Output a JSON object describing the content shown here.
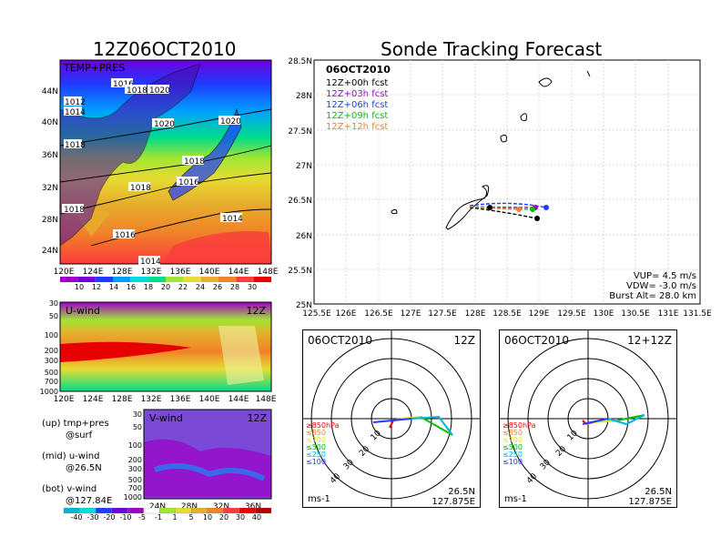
{
  "left_title": "12Z06OCT2010",
  "right_title": "Sonde Tracking Forecast",
  "temp_panel": {
    "label": "TEMP+PRES",
    "lat_ticks": [
      "44N",
      "40N",
      "36N",
      "32N",
      "28N",
      "24N"
    ],
    "lon_ticks": [
      "120E",
      "124E",
      "128E",
      "132E",
      "136E",
      "140E",
      "144E",
      "148E"
    ],
    "pressure_labels": [
      "1016",
      "1018",
      "1020",
      "1020",
      "1020",
      "1012",
      "1014",
      "1018",
      "1018",
      "1018",
      "1016",
      "1018",
      "1014",
      "1016",
      "1014"
    ],
    "colorbar": [
      "10",
      "12",
      "14",
      "16",
      "18",
      "20",
      "22",
      "24",
      "26",
      "28",
      "30"
    ],
    "colors": [
      "#a000c8",
      "#6e00dc",
      "#1e3cff",
      "#00a0ff",
      "#00dcdc",
      "#00dc8c",
      "#a0e632",
      "#e6dc32",
      "#e6af2d",
      "#f08228",
      "#fa3c3c",
      "#e60000"
    ]
  },
  "u_panel": {
    "label": "U-wind",
    "time": "12Z",
    "p_ticks": [
      "30",
      "50",
      "100",
      "200",
      "300",
      "500",
      "700",
      "1000"
    ],
    "lon_ticks": [
      "120E",
      "124E",
      "128E",
      "132E",
      "136E",
      "140E",
      "144E",
      "148E"
    ]
  },
  "v_panel": {
    "label": "V-wind",
    "time": "12Z",
    "p_ticks": [
      "30",
      "50",
      "100",
      "200",
      "300",
      "500",
      "700",
      "1000"
    ],
    "lat_ticks": [
      "24N",
      "28N",
      "32N",
      "36N"
    ]
  },
  "legend_notes": [
    "(up) tmp+pres",
    "@surf",
    "(mid) u-wind",
    "@26.5N",
    "(bot) v-wind",
    "@127.84E"
  ],
  "wind_colorbar": [
    "-40",
    "-30",
    "-20",
    "-10",
    "-5",
    "-1",
    "1",
    "5",
    "10",
    "20",
    "30",
    "40"
  ],
  "track_map": {
    "date": "06OCT2010",
    "forecasts": [
      {
        "label": "12Z+00h fcst",
        "color": "#000000"
      },
      {
        "label": "12Z+03h fcst",
        "color": "#a000c8"
      },
      {
        "label": "12Z+06h fcst",
        "color": "#1e3cff"
      },
      {
        "label": "12Z+09h fcst",
        "color": "#00c000"
      },
      {
        "label": "12Z+12h fcst",
        "color": "#f08228"
      }
    ],
    "lat_ticks": [
      "28.5N",
      "28N",
      "27.5N",
      "27N",
      "26.5N",
      "26N",
      "25.5N",
      "25N"
    ],
    "lon_ticks": [
      "125.5E",
      "126E",
      "126.5E",
      "127E",
      "127.5E",
      "128E",
      "128.5E",
      "129E",
      "129.5E",
      "130E",
      "130.5E",
      "131E",
      "131.5E"
    ],
    "vup": "VUP= 4.5 m/s",
    "vdw": "VDW= -3.0 m/s",
    "burst": "Burst Alt= 28.0 km"
  },
  "hodo1": {
    "date": "06OCT2010",
    "time": "12Z",
    "lat": "26.5N",
    "lon": "127.875E",
    "unit": "ms-1",
    "rings": [
      "10",
      "20",
      "30",
      "40"
    ],
    "levels": [
      {
        "label": "≥850hPa",
        "color": "#e60000"
      },
      {
        "label": "≤850",
        "color": "#f08228"
      },
      {
        "label": "≤700",
        "color": "#e6dc32"
      },
      {
        "label": "≤500",
        "color": "#00c000"
      },
      {
        "label": "≤250",
        "color": "#00b4dc"
      },
      {
        "label": "≤100",
        "color": "#1e3cff"
      }
    ]
  },
  "hodo2": {
    "date": "06OCT2010",
    "time": "12+12Z",
    "lat": "26.5N",
    "lon": "127.875E",
    "unit": "ms-1",
    "rings": [
      "10",
      "20",
      "30",
      "40"
    ],
    "levels": [
      {
        "label": "≥850hPa",
        "color": "#e60000"
      },
      {
        "label": "≤850",
        "color": "#f08228"
      },
      {
        "label": "≤700",
        "color": "#e6dc32"
      },
      {
        "label": "≤500",
        "color": "#00c000"
      },
      {
        "label": "≤250",
        "color": "#00b4dc"
      },
      {
        "label": "≤100",
        "color": "#1e3cff"
      }
    ]
  }
}
